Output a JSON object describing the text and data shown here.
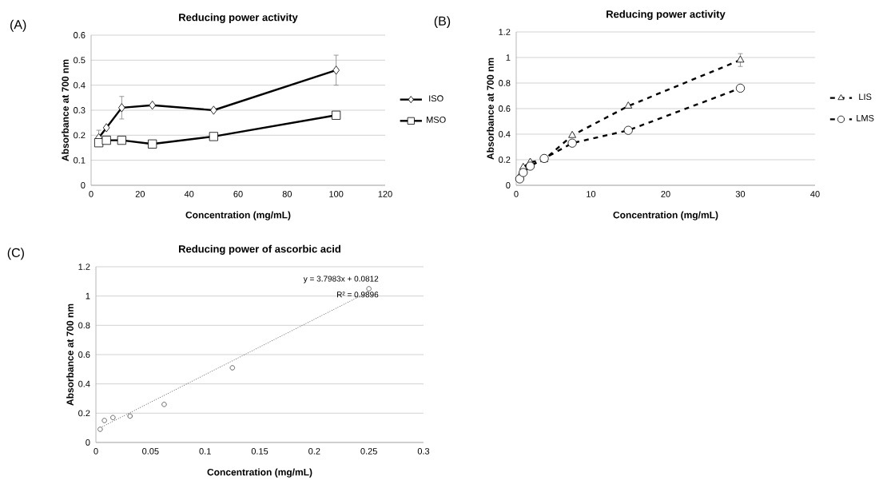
{
  "chart_data": [
    {
      "type": "line",
      "title": "Reducing power activity",
      "xlabel": "Concentration (mg/mL)",
      "ylabel": "Absorbance at 700 nm",
      "annotations": [
        "(A)"
      ],
      "xlim": [
        0,
        120
      ],
      "xticks": [
        0,
        20,
        40,
        60,
        80,
        100,
        120
      ],
      "ylim": [
        0,
        0.6
      ],
      "yticks": [
        0,
        0.1,
        0.2,
        0.3,
        0.4,
        0.5,
        0.6
      ],
      "grid": "y",
      "legend": "right",
      "line_style": "solid",
      "series": [
        {
          "name": "ISO",
          "color": "#000000",
          "marker": "diamond",
          "x": [
            3.125,
            6.25,
            12.5,
            25,
            50,
            100
          ],
          "values": [
            0.19,
            0.23,
            0.31,
            0.32,
            0.3,
            0.46
          ],
          "errors": [
            0.03,
            null,
            0.045,
            null,
            null,
            0.06
          ]
        },
        {
          "name": "MSO",
          "color": "#000000",
          "marker": "square",
          "x": [
            3.125,
            6.25,
            12.5,
            25,
            50,
            100
          ],
          "values": [
            0.17,
            0.18,
            0.18,
            0.165,
            0.195,
            0.28
          ]
        }
      ]
    },
    {
      "type": "line",
      "title": "Reducing power activity",
      "xlabel": "Concentration (mg/mL)",
      "ylabel": "Absorbance at 700 nm",
      "annotations": [
        "(B)"
      ],
      "xlim": [
        0,
        40
      ],
      "xticks": [
        0,
        10,
        20,
        30,
        40
      ],
      "ylim": [
        0,
        1.2
      ],
      "yticks": [
        0,
        0.2,
        0.4,
        0.6,
        0.8,
        1,
        1.2
      ],
      "grid": "y",
      "legend": "right",
      "line_style": "dashed",
      "series": [
        {
          "name": "LIS",
          "color": "#000000",
          "marker": "triangle",
          "x": [
            0.47,
            0.94,
            1.875,
            3.75,
            7.5,
            15,
            30
          ],
          "values": [
            0.07,
            0.14,
            0.18,
            0.2,
            0.39,
            0.62,
            0.98
          ],
          "errors": [
            null,
            null,
            null,
            null,
            null,
            null,
            0.05
          ]
        },
        {
          "name": "LMS",
          "color": "#000000",
          "marker": "circle",
          "x": [
            0.47,
            0.94,
            1.875,
            3.75,
            7.5,
            15,
            30
          ],
          "values": [
            0.05,
            0.1,
            0.15,
            0.21,
            0.33,
            0.43,
            0.76
          ]
        }
      ]
    },
    {
      "type": "scatter",
      "title": "Reducing power of ascorbic acid",
      "xlabel": "Concentration (mg/mL)",
      "ylabel": "Absorbance at 700 nm",
      "annotations": [
        "(C)",
        "y = 3.7983x + 0.0812",
        "R² = 0.9896"
      ],
      "xlim": [
        0,
        0.3
      ],
      "xticks": [
        0,
        0.05,
        0.1,
        0.15,
        0.2,
        0.25,
        0.3
      ],
      "ylim": [
        0,
        1.2
      ],
      "yticks": [
        0,
        0.2,
        0.4,
        0.6,
        0.8,
        1,
        1.2
      ],
      "grid": "y",
      "series": [
        {
          "color": "#404040",
          "marker": "circle",
          "x": [
            0.0039,
            0.0078,
            0.0156,
            0.03125,
            0.0625,
            0.125,
            0.25
          ],
          "values": [
            0.09,
            0.15,
            0.17,
            0.18,
            0.26,
            0.51,
            1.05
          ]
        },
        {
          "type": "line",
          "color": "#000000",
          "marker": "none",
          "line_style": "dotted",
          "x": [
            0.0039,
            0.25
          ],
          "values": [
            0.1,
            1.03
          ]
        }
      ]
    }
  ]
}
